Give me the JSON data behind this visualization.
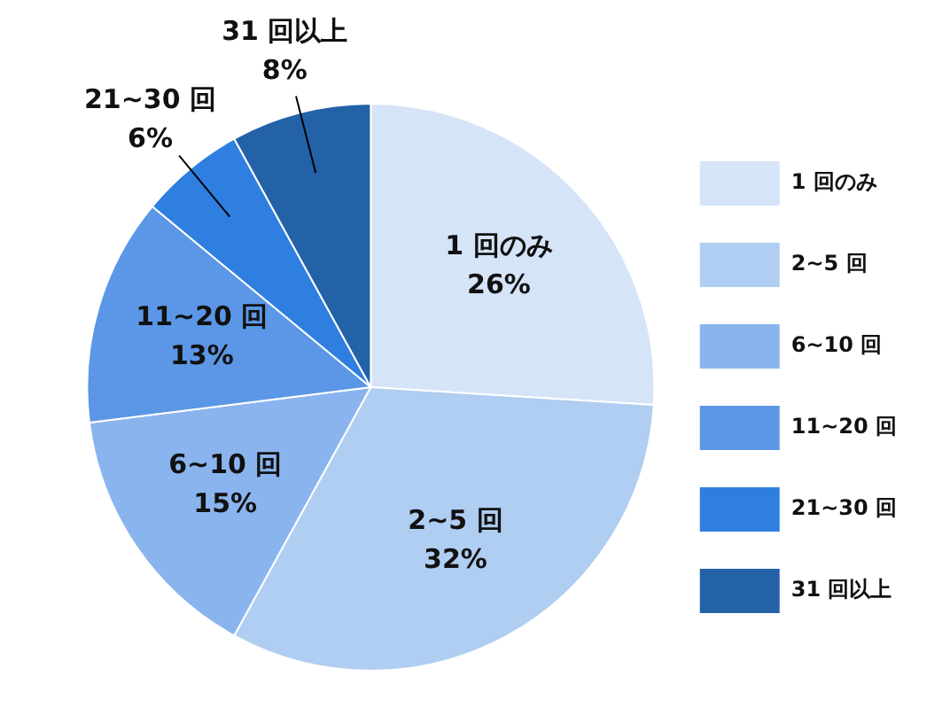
{
  "chart_data": {
    "type": "pie",
    "categories": [
      "1 回のみ",
      "2~5 回",
      "6~10 回",
      "11~20 回",
      "21~30 回",
      "31 回以上"
    ],
    "values": [
      26,
      32,
      15,
      13,
      6,
      8
    ],
    "value_labels": [
      "26%",
      "32%",
      "15%",
      "13%",
      "6%",
      "8%"
    ],
    "colors": [
      "#d6e4f8",
      "#b0cdf2",
      "#8ab4ee",
      "#5b97e6",
      "#2e7fe0",
      "#2462a8"
    ],
    "legend": "right"
  }
}
